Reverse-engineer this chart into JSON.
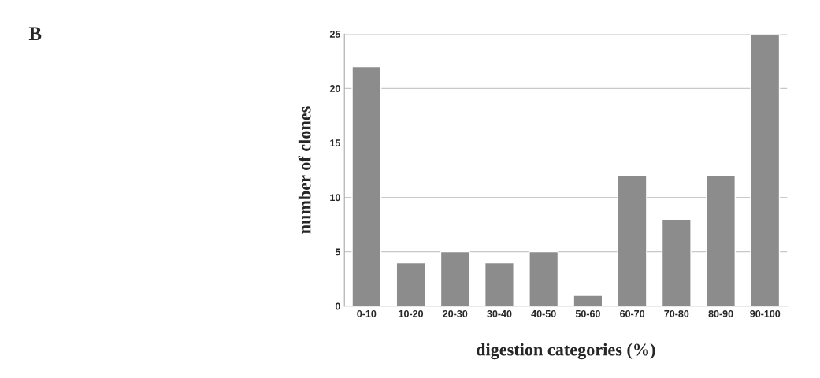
{
  "chart_data": {
    "type": "bar",
    "annotations": [
      "B"
    ],
    "xlabel": "digestion categories (%)",
    "ylabel": "number of clones",
    "categories": [
      "0-10",
      "10-20",
      "20-30",
      "30-40",
      "40-50",
      "50-60",
      "60-70",
      "70-80",
      "80-90",
      "90-100"
    ],
    "values": [
      22,
      4,
      5,
      4,
      5,
      1,
      12,
      8,
      12,
      25
    ],
    "color": "#8c8c8c",
    "ylim": [
      0,
      25
    ],
    "yticks": [
      0,
      5,
      10,
      15,
      20,
      25
    ],
    "grid": "y"
  }
}
